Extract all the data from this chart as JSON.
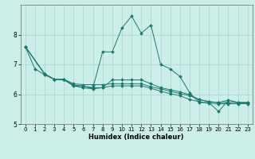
{
  "xlabel": "Humidex (Indice chaleur)",
  "bg_color": "#cceee8",
  "grid_color": "#aad4ce",
  "line_color": "#1a7a6e",
  "xlim": [
    -0.5,
    23.5
  ],
  "ylim": [
    5,
    9
  ],
  "yticks": [
    5,
    6,
    7,
    8
  ],
  "xticks": [
    0,
    1,
    2,
    3,
    4,
    5,
    6,
    7,
    8,
    9,
    10,
    11,
    12,
    13,
    14,
    15,
    16,
    17,
    18,
    19,
    20,
    21,
    22,
    23
  ],
  "lines": [
    {
      "x": [
        0,
        1,
        2,
        3,
        4,
        5,
        6,
        7,
        8,
        9,
        10,
        11,
        12,
        13,
        14,
        15,
        16,
        17,
        18,
        19,
        20,
        21,
        22,
        23
      ],
      "y": [
        7.6,
        6.85,
        6.65,
        6.5,
        6.48,
        6.28,
        6.22,
        6.22,
        7.42,
        7.42,
        8.22,
        8.62,
        8.05,
        8.32,
        7.0,
        6.85,
        6.6,
        6.05,
        5.72,
        5.72,
        5.42,
        5.8,
        5.72,
        5.72
      ]
    },
    {
      "x": [
        0,
        2,
        3,
        4,
        5,
        6,
        7,
        8,
        9,
        10,
        11,
        12,
        13,
        14,
        15,
        16,
        17,
        18,
        19,
        20,
        21,
        22,
        23
      ],
      "y": [
        7.6,
        6.68,
        6.5,
        6.5,
        6.35,
        6.32,
        6.32,
        6.32,
        6.35,
        6.35,
        6.35,
        6.35,
        6.25,
        6.18,
        6.1,
        6.02,
        5.95,
        5.82,
        5.75,
        5.72,
        5.72,
        5.72,
        5.72
      ]
    },
    {
      "x": [
        0,
        2,
        3,
        4,
        5,
        6,
        7,
        8,
        9,
        10,
        11,
        12,
        13,
        14,
        15,
        16,
        17,
        18,
        19,
        20,
        21,
        22,
        23
      ],
      "y": [
        7.6,
        6.68,
        6.5,
        6.5,
        6.3,
        6.28,
        6.22,
        6.22,
        6.28,
        6.28,
        6.28,
        6.28,
        6.2,
        6.1,
        6.02,
        5.95,
        5.82,
        5.75,
        5.7,
        5.68,
        5.68,
        5.68,
        5.68
      ]
    },
    {
      "x": [
        0,
        2,
        3,
        4,
        5,
        6,
        7,
        8,
        9,
        10,
        11,
        12,
        13,
        14,
        15,
        16,
        17,
        18,
        19,
        20,
        21,
        22,
        23
      ],
      "y": [
        7.6,
        6.68,
        6.5,
        6.5,
        6.3,
        6.22,
        6.18,
        6.22,
        6.48,
        6.48,
        6.48,
        6.48,
        6.35,
        6.22,
        6.15,
        6.08,
        5.98,
        5.82,
        5.75,
        5.72,
        5.8,
        5.72,
        5.72
      ]
    }
  ]
}
